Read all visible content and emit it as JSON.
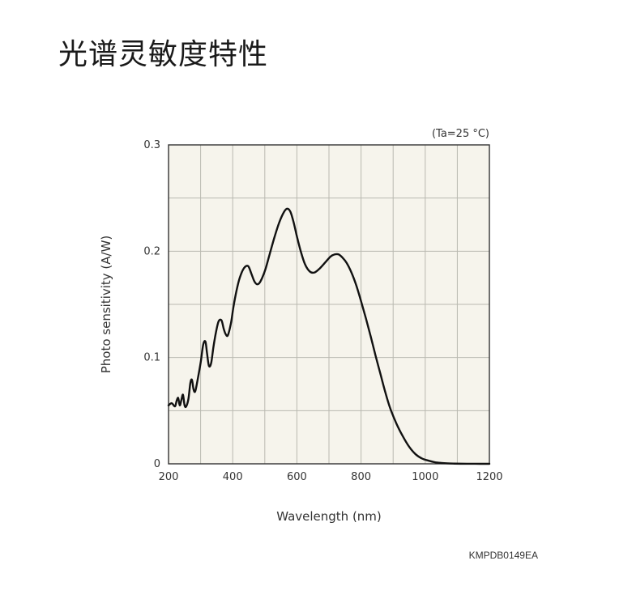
{
  "page": {
    "title": "光谱灵敏度特性",
    "figure_code": "KMPDB0149EA"
  },
  "colors": {
    "plot_background": "#f6f4ec",
    "grid": "#b9b9b0",
    "frame": "#333333",
    "curve": "#111111"
  },
  "chart_data": {
    "type": "line",
    "title": "",
    "annotation": "(Ta=25 °C)",
    "xlabel": "Wavelength (nm)",
    "ylabel": "Photo sensitivity (A/W)",
    "xlim": [
      200,
      1200
    ],
    "ylim": [
      0,
      0.3
    ],
    "xticks": [
      200,
      400,
      600,
      800,
      1000,
      1200
    ],
    "xtick_labels": [
      "200",
      "400",
      "600",
      "800",
      "1000",
      "1200"
    ],
    "yticks": [
      0,
      0.1,
      0.2,
      0.3
    ],
    "ytick_labels": [
      "0",
      "0.1",
      "0.2",
      "0.3"
    ],
    "grid": true,
    "x_grid_step": 100,
    "y_grid_step": 0.05,
    "series": [
      {
        "x": [
          200,
          210,
          220,
          225,
          230,
          235,
          240,
          245,
          250,
          255,
          262,
          268,
          273,
          278,
          283,
          290,
          300,
          308,
          315,
          320,
          326,
          333,
          340,
          348,
          356,
          365,
          372,
          378,
          385,
          395,
          402,
          412,
          422,
          435,
          448,
          458,
          467,
          475,
          483,
          492,
          502,
          515,
          530,
          545,
          560,
          570,
          580,
          590,
          600,
          612,
          625,
          640,
          655,
          672,
          690,
          705,
          718,
          730,
          742,
          755,
          770,
          785,
          800,
          815,
          830,
          845,
          860,
          875,
          890,
          910,
          930,
          950,
          970,
          990,
          1010,
          1030,
          1050,
          1070,
          1090,
          1110,
          1130,
          1150,
          1170,
          1200
        ],
        "y": [
          0.055,
          0.057,
          0.054,
          0.059,
          0.062,
          0.055,
          0.06,
          0.065,
          0.055,
          0.054,
          0.061,
          0.076,
          0.079,
          0.07,
          0.068,
          0.078,
          0.095,
          0.112,
          0.115,
          0.104,
          0.092,
          0.095,
          0.11,
          0.124,
          0.134,
          0.135,
          0.127,
          0.122,
          0.121,
          0.133,
          0.147,
          0.163,
          0.175,
          0.184,
          0.186,
          0.179,
          0.172,
          0.169,
          0.17,
          0.175,
          0.183,
          0.197,
          0.213,
          0.227,
          0.237,
          0.24,
          0.237,
          0.227,
          0.214,
          0.2,
          0.188,
          0.181,
          0.18,
          0.184,
          0.19,
          0.195,
          0.197,
          0.197,
          0.194,
          0.189,
          0.18,
          0.168,
          0.153,
          0.137,
          0.12,
          0.102,
          0.085,
          0.068,
          0.053,
          0.038,
          0.026,
          0.016,
          0.009,
          0.005,
          0.003,
          0.0015,
          0.0008,
          0.0004,
          0.0002,
          0.0001,
          5e-05,
          2e-05,
          1e-05,
          0.0
        ]
      }
    ]
  }
}
